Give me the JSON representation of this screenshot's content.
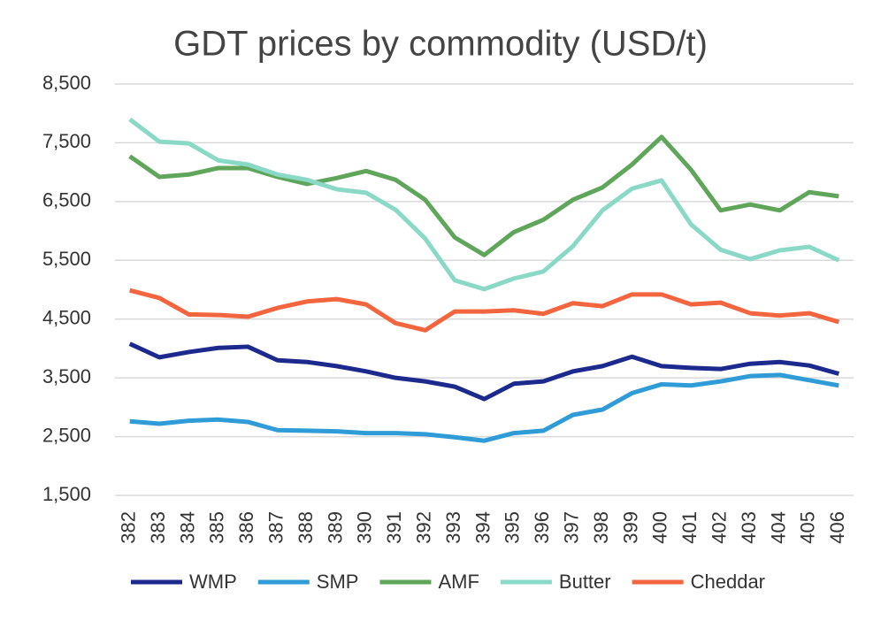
{
  "chart_data": {
    "type": "line",
    "title": "GDT prices by commodity (USD/t)",
    "categories": [
      "382",
      "383",
      "384",
      "385",
      "386",
      "387",
      "388",
      "389",
      "390",
      "391",
      "392",
      "393",
      "394",
      "395",
      "396",
      "397",
      "398",
      "399",
      "400",
      "401",
      "402",
      "403",
      "404",
      "405",
      "406"
    ],
    "series": [
      {
        "name": "WMP",
        "color": "#1b2a8c",
        "values": [
          4080,
          3850,
          3940,
          4010,
          4030,
          3800,
          3770,
          3700,
          3610,
          3500,
          3440,
          3350,
          3140,
          3400,
          3440,
          3610,
          3700,
          3860,
          3700,
          3670,
          3650,
          3740,
          3770,
          3710,
          3570
        ]
      },
      {
        "name": "SMP",
        "color": "#2f9bd7",
        "values": [
          2760,
          2720,
          2770,
          2790,
          2750,
          2610,
          2600,
          2590,
          2560,
          2560,
          2540,
          2490,
          2430,
          2560,
          2600,
          2870,
          2960,
          3240,
          3390,
          3370,
          3440,
          3530,
          3550,
          3460,
          3370
        ]
      },
      {
        "name": "AMF",
        "color": "#5fa65b",
        "values": [
          7270,
          6920,
          6960,
          7070,
          7070,
          6920,
          6800,
          6900,
          7020,
          6870,
          6530,
          5890,
          5590,
          5980,
          6190,
          6530,
          6740,
          7130,
          7600,
          7040,
          6350,
          6450,
          6350,
          6660,
          6590
        ]
      },
      {
        "name": "Butter",
        "color": "#8ad9c7",
        "values": [
          7900,
          7520,
          7490,
          7200,
          7130,
          6960,
          6870,
          6710,
          6650,
          6360,
          5870,
          5160,
          5010,
          5190,
          5310,
          5740,
          6350,
          6720,
          6860,
          6110,
          5680,
          5520,
          5670,
          5730,
          5500
        ]
      },
      {
        "name": "Cheddar",
        "color": "#f2653f",
        "values": [
          4990,
          4860,
          4580,
          4570,
          4540,
          4690,
          4800,
          4840,
          4750,
          4430,
          4310,
          4630,
          4630,
          4650,
          4590,
          4770,
          4720,
          4920,
          4920,
          4750,
          4780,
          4600,
          4560,
          4600,
          4450
        ]
      }
    ],
    "ylim": [
      1500,
      8500
    ],
    "yticks": [
      {
        "value": 1500,
        "label": "1,500"
      },
      {
        "value": 2500,
        "label": "2,500"
      },
      {
        "value": 3500,
        "label": "3,500"
      },
      {
        "value": 4500,
        "label": "4,500"
      },
      {
        "value": 5500,
        "label": "5,500"
      },
      {
        "value": 6500,
        "label": "6,500"
      },
      {
        "value": 7500,
        "label": "7,500"
      },
      {
        "value": 8500,
        "label": "8,500"
      }
    ],
    "grid": true
  }
}
